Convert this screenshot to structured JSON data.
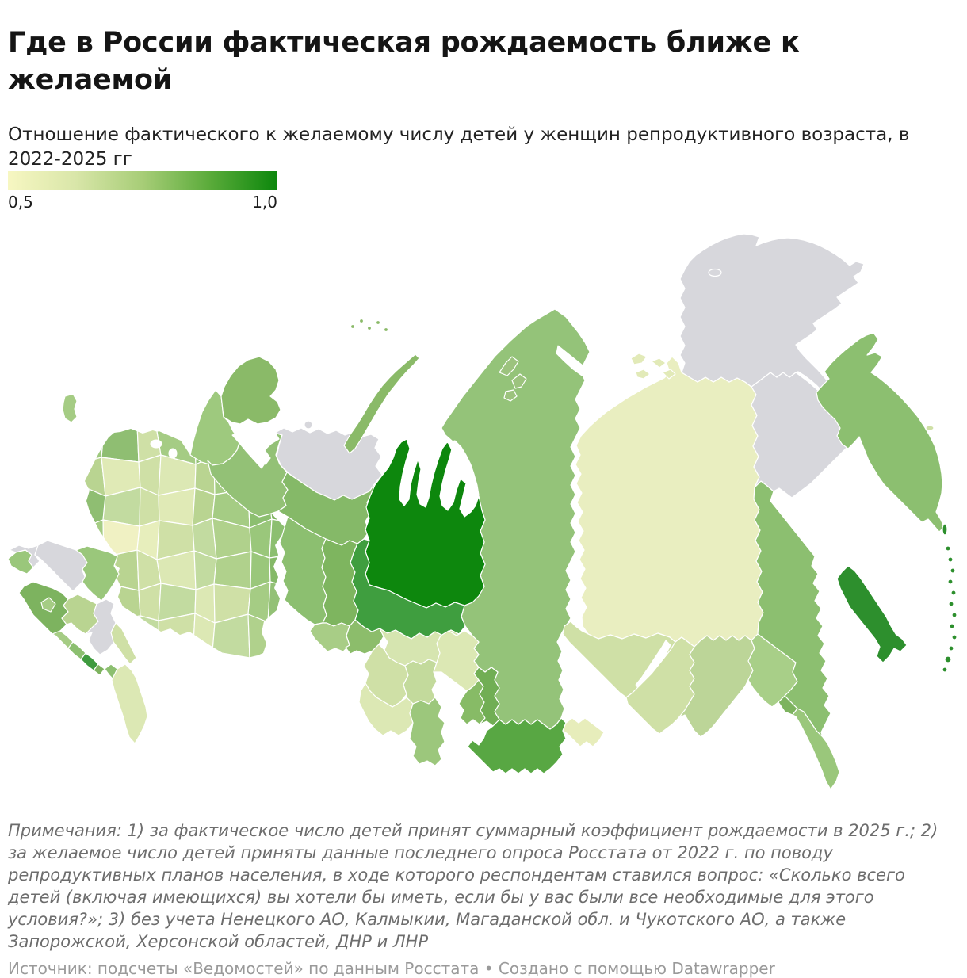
{
  "header": {
    "title": "Где в России фактическая рождаемость ближе к желаемой",
    "subtitle": "Отношение фактического к желаемому числу детей у женщин репродуктивного возраста, в 2022-2025 гг"
  },
  "legend": {
    "min_label": "0,5",
    "max_label": "1,0",
    "gradient_stops": [
      "#f7f7c2",
      "#d9e6a9",
      "#a7cd77",
      "#5aab3a",
      "#0c870c"
    ]
  },
  "footer": {
    "notes": "Примечания: 1) за фактическое число детей принят суммарный коэффициент рождаемости в 2025 г.; 2) за желаемое число детей приняты данные последнего опроса Росстата от 2022 г. по поводу репродуктивных планов населения, в ходе которого респондентам ставился вопрос: «Сколько всего детей (включая имеющихся) вы хотели бы иметь, если бы у вас были все необходимые для этого условия?»; 3) без учета Ненецкого АО, Калмыкии, Магаданской обл. и Чукотского АО, а также Запорожской, Херсонской областей, ДНР и ЛНР",
    "source": "Источник: подсчеты «Ведомостей» по данным Росстата",
    "separator": "•",
    "credit": "Создано с помощью Datawrapper"
  },
  "map": {
    "no_data_color": "#d7d7dc",
    "regions": [
      {
        "id": "krasnoyarsk",
        "color": "#94c379"
      },
      {
        "id": "yakutia",
        "color": "#e9eec0"
      },
      {
        "id": "karelia",
        "color": "#9ec97e"
      },
      {
        "id": "murmansk",
        "color": "#8aba68"
      },
      {
        "id": "arkhangelsk",
        "color": "#93c176"
      },
      {
        "id": "nenets",
        "color": "#d7d7dc"
      },
      {
        "id": "kolguev",
        "color": "#d7d7dc"
      },
      {
        "id": "komi",
        "color": "#85b968"
      },
      {
        "id": "perm",
        "color": "#8cbf70"
      },
      {
        "id": "sverdlovsk",
        "color": "#7eb55f"
      },
      {
        "id": "chelyabinsk",
        "color": "#a8cd86"
      },
      {
        "id": "kurgan",
        "color": "#8cbd6b"
      },
      {
        "id": "yamalo-nenets",
        "color": "#0d870d"
      },
      {
        "id": "khanty-mansi",
        "color": "#3f9e3f"
      },
      {
        "id": "tyumen",
        "color": "#d6e5b0"
      },
      {
        "id": "omsk",
        "color": "#cfe0a6"
      },
      {
        "id": "novosibirsk",
        "color": "#c3da9c"
      },
      {
        "id": "tomsk",
        "color": "#dce8b4"
      },
      {
        "id": "kemerovo",
        "color": "#87bb66"
      },
      {
        "id": "altai-krai",
        "color": "#dce8b4"
      },
      {
        "id": "altai-rep",
        "color": "#9cc77c"
      },
      {
        "id": "khakassia",
        "color": "#71ae54"
      },
      {
        "id": "tuva",
        "color": "#58a743"
      },
      {
        "id": "irkutsk",
        "color": "#cfe0a6"
      },
      {
        "id": "buryatia",
        "color": "#cfe0a6"
      },
      {
        "id": "buryatia-west",
        "color": "#e7edbb"
      },
      {
        "id": "zabaikalsky",
        "color": "#bcd598"
      },
      {
        "id": "amur",
        "color": "#a8cf88"
      },
      {
        "id": "jewish",
        "color": "#7db35f"
      },
      {
        "id": "khabarovsk",
        "color": "#8cbf70"
      },
      {
        "id": "primorye",
        "color": "#9ac77b"
      },
      {
        "id": "magadan",
        "color": "#d7d7dc"
      },
      {
        "id": "chukotka",
        "color": "#d7d7dc"
      },
      {
        "id": "wrangel",
        "color": "#d7d7dc"
      },
      {
        "id": "kamchatka",
        "color": "#8cbf70"
      },
      {
        "id": "commander",
        "color": "#cfe0a6"
      },
      {
        "id": "sakhalin",
        "color": "#2d8f2d"
      },
      {
        "id": "kurily",
        "color": "#2d8f2d"
      },
      {
        "id": "severnaya-zemlya",
        "color": "#9cc37e"
      },
      {
        "id": "new-siberian",
        "color": "#e2eab8"
      },
      {
        "id": "novaya-zemlya",
        "color": "#8aba68"
      },
      {
        "id": "franz-josef",
        "color": "#8aba68"
      },
      {
        "id": "kaliningrad",
        "color": "#a5cc84"
      },
      {
        "id": "crimea",
        "color": "#9ac77b"
      },
      {
        "id": "kherson-zaporozhye",
        "color": "#d7d7dc"
      },
      {
        "id": "dnr-lnr",
        "color": "#d7d7dc"
      },
      {
        "id": "rostov",
        "color": "#9ac77b"
      },
      {
        "id": "krasnodar",
        "color": "#7db35f"
      },
      {
        "id": "adygea",
        "color": "#a5cc84"
      },
      {
        "id": "stavropol",
        "color": "#b9d491"
      },
      {
        "id": "kalmykia",
        "color": "#d7d7dc"
      },
      {
        "id": "astrakhan",
        "color": "#cfe0a6"
      },
      {
        "id": "karachay",
        "color": "#a5cc84"
      },
      {
        "id": "kabardino",
        "color": "#8cbf70"
      },
      {
        "id": "north-ossetia",
        "color": "#3f9b3f"
      },
      {
        "id": "ingushetia",
        "color": "#7db35f"
      },
      {
        "id": "chechnya",
        "color": "#8cbf70"
      },
      {
        "id": "dagestan",
        "color": "#dce8b4"
      }
    ],
    "mosaic_rows": [
      [
        "#9ec97e",
        "#8fbe72",
        "#cfe0a6",
        "#a5cc84",
        "#93c176",
        "#a5cc84",
        "#8cbf70",
        "#93c176"
      ],
      [
        "#b9d491",
        "#e0eab6",
        "#cfe0a6",
        "#dce8b4",
        "#b9d491",
        "#a5cc84",
        "#93c176",
        "#85b968"
      ],
      [
        "#8fbe72",
        "#c2dba0",
        "#cfe0a6",
        "#e0eab6",
        "#b9d491",
        "#a5cc84",
        "#8cbf70",
        "#7db35f"
      ],
      [
        "#a5cc84",
        "#f0f1c3",
        "#e7eebc",
        "#cfe0a6",
        "#c2dba0",
        "#b0d18c",
        "#9ac77b",
        "#8cbf70"
      ],
      [
        "#9ac77b",
        "#b9d491",
        "#cfe0a6",
        "#dce8b4",
        "#c2dba0",
        "#b0d18c",
        "#9ac77b",
        "#85b968"
      ],
      [
        "#a5cc84",
        "#b9d491",
        "#cfe0a6",
        "#c2dba0",
        "#dce8b4",
        "#cfe0a6",
        "#a5cc84",
        "#93c176"
      ],
      [
        "#9ac77b",
        "#b0d18c",
        "#c2dba0",
        "#cfe0a6",
        "#dce8b4",
        "#c2dba0",
        "#b0d18c",
        "#a5cc84"
      ]
    ]
  }
}
